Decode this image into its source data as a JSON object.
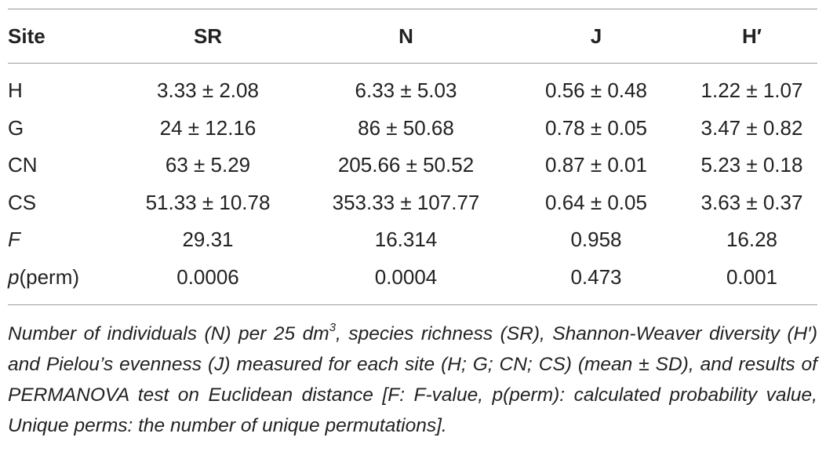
{
  "table": {
    "headers": [
      "Site",
      "SR",
      "N",
      "J",
      "H′"
    ],
    "rows": [
      {
        "site": "H",
        "sr": "3.33 ± 2.08",
        "n": "6.33 ± 5.03",
        "j": "0.56 ± 0.48",
        "h": "1.22 ± 1.07"
      },
      {
        "site": "G",
        "sr": "24 ± 12.16",
        "n": "86 ± 50.68",
        "j": "0.78 ± 0.05",
        "h": "3.47 ± 0.82"
      },
      {
        "site": "CN",
        "sr": "63 ± 5.29",
        "n": "205.66 ± 50.52",
        "j": "0.87 ± 0.01",
        "h": "5.23 ± 0.18"
      },
      {
        "site": "CS",
        "sr": "51.33 ± 10.78",
        "n": "353.33 ± 107.77",
        "j": "0.64 ± 0.05",
        "h": "3.63 ± 0.37"
      }
    ],
    "stats": {
      "f_label": "F",
      "f": {
        "sr": "29.31",
        "n": "16.314",
        "j": "0.958",
        "h": "16.28"
      },
      "p_label_italic": "p",
      "p_label_rest": "(perm)",
      "p": {
        "sr": "0.0006",
        "n": "0.0004",
        "j": "0.473",
        "h": "0.001"
      }
    }
  },
  "caption": {
    "before_sup": "Number of individuals (N) per 25 dm",
    "sup": "3",
    "after_sup": ", species richness (SR), Shannon-Weaver diversity (H′) and Pielou’s evenness (J) measured for each site (H; G; CN; CS) (mean ± SD), and results of PERMANOVA test on Euclidean distance [F: F-value, p(perm): calculated probability value, Unique perms: the number of unique permutations]."
  }
}
